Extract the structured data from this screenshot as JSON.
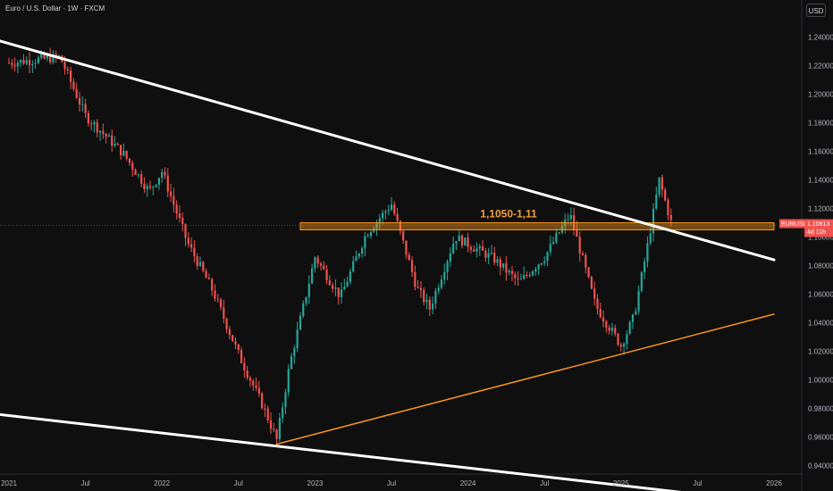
{
  "header": {
    "symbol_title": "Euro / U.S. Dollar · 1W · FXCM"
  },
  "currency_button": {
    "label": "USD"
  },
  "colors": {
    "background": "#0f0f0f",
    "up": "#26a69a",
    "down": "#ef5350",
    "trendline_white": "#ffffff",
    "trendline_orange": "#f7931a",
    "zone": "#f7931a"
  },
  "chart_data": {
    "type": "candlestick",
    "x_axis": {
      "ticks": [
        "2021",
        "Jul",
        "2022",
        "Jul",
        "2023",
        "Jul",
        "2024",
        "Jul",
        "2025",
        "Jul",
        "2026"
      ]
    },
    "y_axis": {
      "range": [
        0.93,
        1.255
      ],
      "ticks": [
        "1.24000",
        "1.22000",
        "1.20000",
        "1.18000",
        "1.16000",
        "1.14000",
        "1.12000",
        "1.10000",
        "1.08000",
        "1.06000",
        "1.04000",
        "1.02000",
        "1.00000",
        "0.98000",
        "0.96000",
        "0.94000"
      ]
    },
    "price_path": [
      {
        "date": "2021-01",
        "price": 1.222
      },
      {
        "date": "2021-05",
        "price": 1.226
      },
      {
        "date": "2021-07",
        "price": 1.185
      },
      {
        "date": "2021-10",
        "price": 1.158
      },
      {
        "date": "2021-12",
        "price": 1.132
      },
      {
        "date": "2022-01",
        "price": 1.146
      },
      {
        "date": "2022-03",
        "price": 1.096
      },
      {
        "date": "2022-05",
        "price": 1.062
      },
      {
        "date": "2022-07",
        "price": 1.018
      },
      {
        "date": "2022-09",
        "price": 0.98
      },
      {
        "date": "2022-10",
        "price": 0.958
      },
      {
        "date": "2022-11",
        "price": 1.01
      },
      {
        "date": "2023-01",
        "price": 1.086
      },
      {
        "date": "2023-03",
        "price": 1.058
      },
      {
        "date": "2023-05",
        "price": 1.102
      },
      {
        "date": "2023-07",
        "price": 1.123
      },
      {
        "date": "2023-09",
        "price": 1.064
      },
      {
        "date": "2023-10",
        "price": 1.05
      },
      {
        "date": "2023-12",
        "price": 1.1
      },
      {
        "date": "2024-03",
        "price": 1.085
      },
      {
        "date": "2024-05",
        "price": 1.068
      },
      {
        "date": "2024-07",
        "price": 1.086
      },
      {
        "date": "2024-09",
        "price": 1.116
      },
      {
        "date": "2024-11",
        "price": 1.052
      },
      {
        "date": "2025-01",
        "price": 1.024
      },
      {
        "date": "2025-02",
        "price": 1.044
      },
      {
        "date": "2025-03",
        "price": 1.09
      },
      {
        "date": "2025-04",
        "price": 1.14
      },
      {
        "date": "2025-05",
        "price": 1.108
      }
    ],
    "last_price": {
      "symbol": "EURUSD",
      "price": "1.10813",
      "countdown": "4d 11h"
    },
    "annotations": {
      "zone": {
        "label": "1,1050-1,11",
        "price_low": 1.105,
        "price_high": 1.11
      },
      "upper_trendline": {
        "from": [
          "2020-12",
          1.238
        ],
        "to": [
          "2026-01",
          1.084
        ]
      },
      "lower_trendline": {
        "from": [
          "2020-12",
          0.976
        ],
        "to": [
          "2025-06",
          0.921
        ]
      },
      "support_trendline": {
        "from": [
          "2022-10",
          0.955
        ],
        "to": [
          "2026-01",
          1.046
        ]
      }
    }
  }
}
